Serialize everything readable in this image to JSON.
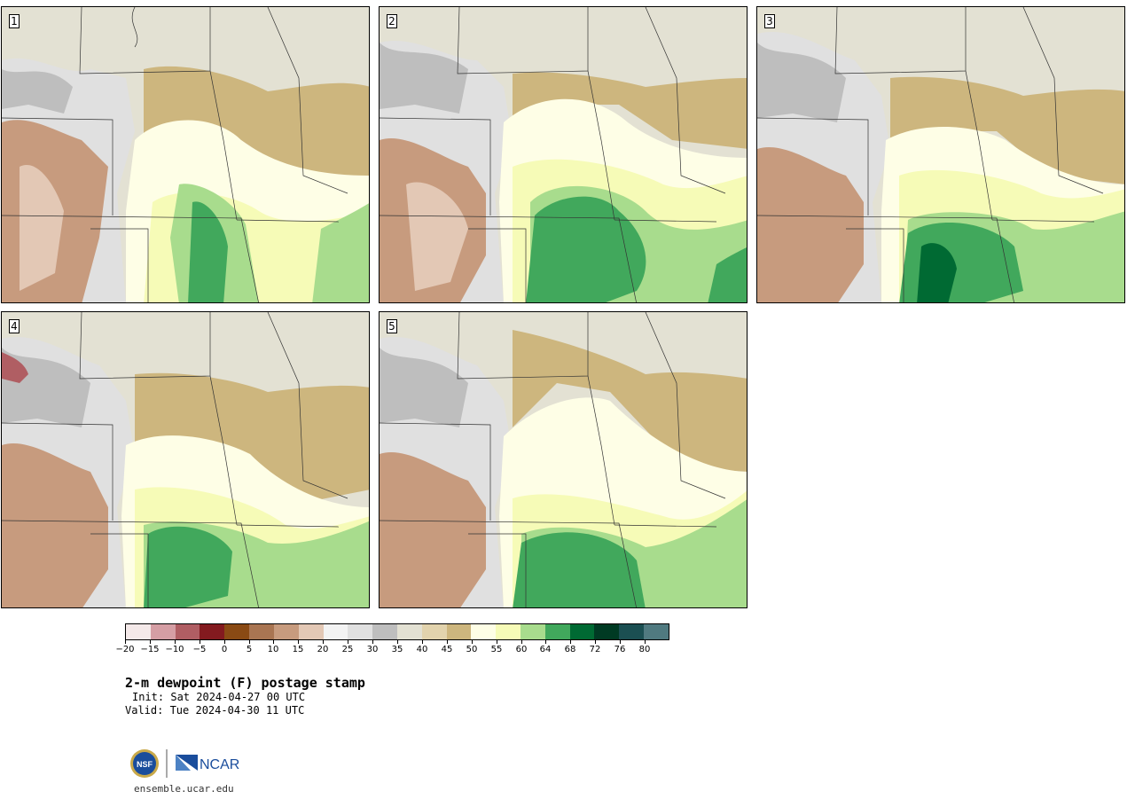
{
  "figure": {
    "title": "2-m dewpoint (F) postage stamp",
    "init": "Init: Sat 2024-04-27 00 UTC",
    "valid": "Valid: Tue 2024-04-30 11 UTC",
    "site": "ensemble.ucar.edu",
    "logo_nsf": "NSF",
    "logo_ncar": "NCAR"
  },
  "panels": [
    {
      "id": "1",
      "label": "1"
    },
    {
      "id": "2",
      "label": "2"
    },
    {
      "id": "3",
      "label": "3"
    },
    {
      "id": "4",
      "label": "4"
    },
    {
      "id": "5",
      "label": "5"
    }
  ],
  "colorbar": {
    "colors": [
      "#f4e9e9",
      "#d59ea4",
      "#b05e63",
      "#831a1f",
      "#8a4a14",
      "#a97552",
      "#c79b7e",
      "#e3c8b5",
      "#f3f3f3",
      "#e0e0e0",
      "#bebebe",
      "#e3e1d3",
      "#e2d3ad",
      "#cdb67e",
      "#fefee6",
      "#f6fbb7",
      "#a8dc8d",
      "#41a85c",
      "#006a33",
      "#003a23",
      "#1b4f52",
      "#507a80"
    ],
    "tick_labels": [
      "−20",
      "−15",
      "−10",
      "−5",
      "0",
      "5",
      "10",
      "15",
      "20",
      "25",
      "30",
      "35",
      "40",
      "45",
      "50",
      "55",
      "60",
      "64",
      "68",
      "72",
      "76",
      "80"
    ]
  }
}
